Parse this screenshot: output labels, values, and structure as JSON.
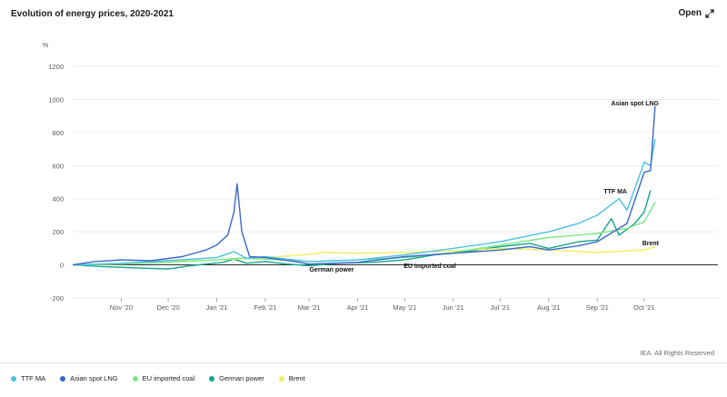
{
  "header": {
    "title": "Evolution of energy prices, 2020-2021",
    "open_label": "Open"
  },
  "footer": {
    "credit": "IEA. All Rights Reserved"
  },
  "chart_data": {
    "type": "line",
    "ylabel": "%",
    "ylim": [
      -200,
      1200
    ],
    "yticks": [
      -200,
      0,
      200,
      400,
      600,
      800,
      1000,
      1200
    ],
    "xlim": [
      "2020-10-01",
      "2021-10-15"
    ],
    "xticks": [
      {
        "date": "2020-11-01",
        "label": "Nov '20"
      },
      {
        "date": "2020-12-01",
        "label": "Dec '20"
      },
      {
        "date": "2021-01-01",
        "label": "Jan '21"
      },
      {
        "date": "2021-02-01",
        "label": "Feb '21"
      },
      {
        "date": "2021-03-01",
        "label": "Mar '21"
      },
      {
        "date": "2021-04-01",
        "label": "Apr '21"
      },
      {
        "date": "2021-05-01",
        "label": "May '21"
      },
      {
        "date": "2021-06-01",
        "label": "Jun '21"
      },
      {
        "date": "2021-07-01",
        "label": "Jul '21"
      },
      {
        "date": "2021-08-01",
        "label": "Aug '21"
      },
      {
        "date": "2021-09-01",
        "label": "Sep '21"
      },
      {
        "date": "2021-10-01",
        "label": "Oct '21"
      }
    ],
    "grid": true,
    "legend_position": "bottom",
    "series": [
      {
        "name": "German power",
        "color": "#12a58e",
        "points": [
          [
            "2020-10-01",
            0
          ],
          [
            "2020-10-20",
            -10
          ],
          [
            "2020-11-10",
            -18
          ],
          [
            "2020-12-01",
            -25
          ],
          [
            "2020-12-15",
            -5
          ],
          [
            "2021-01-05",
            15
          ],
          [
            "2021-01-12",
            35
          ],
          [
            "2021-01-20",
            10
          ],
          [
            "2021-02-01",
            20
          ],
          [
            "2021-02-15",
            5
          ],
          [
            "2021-03-01",
            -5
          ],
          [
            "2021-03-20",
            10
          ],
          [
            "2021-04-10",
            15
          ],
          [
            "2021-05-01",
            30
          ],
          [
            "2021-05-20",
            60
          ],
          [
            "2021-06-10",
            80
          ],
          [
            "2021-07-01",
            110
          ],
          [
            "2021-07-20",
            130
          ],
          [
            "2021-08-01",
            100
          ],
          [
            "2021-08-20",
            140
          ],
          [
            "2021-09-01",
            150
          ],
          [
            "2021-09-10",
            280
          ],
          [
            "2021-09-15",
            180
          ],
          [
            "2021-09-25",
            250
          ],
          [
            "2021-10-01",
            320
          ],
          [
            "2021-10-05",
            450
          ]
        ]
      },
      {
        "name": "Brent",
        "color": "#f2ee5c",
        "points": [
          [
            "2020-10-01",
            0
          ],
          [
            "2020-11-01",
            5
          ],
          [
            "2020-12-01",
            20
          ],
          [
            "2021-01-01",
            30
          ],
          [
            "2021-02-01",
            45
          ],
          [
            "2021-02-25",
            60
          ],
          [
            "2021-03-10",
            75
          ],
          [
            "2021-04-01",
            70
          ],
          [
            "2021-05-01",
            75
          ],
          [
            "2021-06-01",
            85
          ],
          [
            "2021-07-01",
            100
          ],
          [
            "2021-08-01",
            90
          ],
          [
            "2021-09-01",
            75
          ],
          [
            "2021-09-20",
            85
          ],
          [
            "2021-10-01",
            90
          ],
          [
            "2021-10-08",
            110
          ]
        ]
      },
      {
        "name": "EU imported coal",
        "color": "#7ae887",
        "points": [
          [
            "2020-10-01",
            0
          ],
          [
            "2020-11-01",
            5
          ],
          [
            "2020-12-01",
            15
          ],
          [
            "2021-01-01",
            30
          ],
          [
            "2021-01-15",
            40
          ],
          [
            "2021-02-01",
            35
          ],
          [
            "2021-03-01",
            20
          ],
          [
            "2021-04-01",
            30
          ],
          [
            "2021-05-01",
            45
          ],
          [
            "2021-06-01",
            75
          ],
          [
            "2021-07-01",
            120
          ],
          [
            "2021-08-01",
            165
          ],
          [
            "2021-08-20",
            180
          ],
          [
            "2021-09-01",
            190
          ],
          [
            "2021-09-20",
            220
          ],
          [
            "2021-10-01",
            260
          ],
          [
            "2021-10-08",
            380
          ]
        ]
      },
      {
        "name": "TTF MA",
        "color": "#4bc0e8",
        "points": [
          [
            "2020-10-01",
            0
          ],
          [
            "2020-11-01",
            10
          ],
          [
            "2020-12-01",
            25
          ],
          [
            "2021-01-01",
            45
          ],
          [
            "2021-01-12",
            80
          ],
          [
            "2021-01-20",
            40
          ],
          [
            "2021-02-01",
            50
          ],
          [
            "2021-02-15",
            35
          ],
          [
            "2021-03-01",
            20
          ],
          [
            "2021-04-01",
            30
          ],
          [
            "2021-05-01",
            60
          ],
          [
            "2021-06-01",
            100
          ],
          [
            "2021-07-01",
            140
          ],
          [
            "2021-08-01",
            200
          ],
          [
            "2021-08-20",
            250
          ],
          [
            "2021-09-01",
            300
          ],
          [
            "2021-09-15",
            400
          ],
          [
            "2021-09-20",
            330
          ],
          [
            "2021-10-01",
            620
          ],
          [
            "2021-10-05",
            600
          ],
          [
            "2021-10-08",
            760
          ]
        ]
      },
      {
        "name": "Asian spot LNG",
        "color": "#3a67c8",
        "points": [
          [
            "2020-10-01",
            0
          ],
          [
            "2020-10-15",
            20
          ],
          [
            "2020-11-01",
            30
          ],
          [
            "2020-11-20",
            25
          ],
          [
            "2020-12-10",
            50
          ],
          [
            "2020-12-25",
            90
          ],
          [
            "2021-01-01",
            120
          ],
          [
            "2021-01-08",
            180
          ],
          [
            "2021-01-12",
            320
          ],
          [
            "2021-01-14",
            490
          ],
          [
            "2021-01-17",
            200
          ],
          [
            "2021-01-22",
            50
          ],
          [
            "2021-02-01",
            45
          ],
          [
            "2021-02-20",
            20
          ],
          [
            "2021-03-01",
            5
          ],
          [
            "2021-04-01",
            15
          ],
          [
            "2021-05-01",
            50
          ],
          [
            "2021-06-01",
            70
          ],
          [
            "2021-07-01",
            90
          ],
          [
            "2021-07-20",
            110
          ],
          [
            "2021-08-01",
            90
          ],
          [
            "2021-08-20",
            115
          ],
          [
            "2021-09-01",
            140
          ],
          [
            "2021-09-20",
            250
          ],
          [
            "2021-10-01",
            560
          ],
          [
            "2021-10-05",
            570
          ],
          [
            "2021-10-08",
            960
          ]
        ]
      }
    ],
    "annotations": [
      {
        "text": "Asian spot LNG",
        "series": "Asian spot LNG"
      },
      {
        "text": "TTF MA",
        "series": "TTF MA"
      },
      {
        "text": "Brent",
        "series": "Brent"
      },
      {
        "text": "German power",
        "series": "German power"
      },
      {
        "text": "EU imported coal",
        "series": "EU imported coal"
      }
    ]
  }
}
